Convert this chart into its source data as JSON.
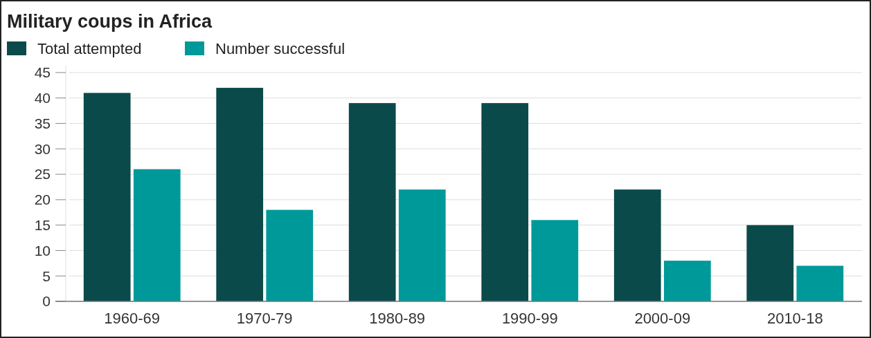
{
  "chart_data": {
    "type": "bar",
    "title": "Military coups in Africa",
    "categories": [
      "1960-69",
      "1970-79",
      "1980-89",
      "1990-99",
      "2000-09",
      "2010-18"
    ],
    "series": [
      {
        "name": "Total attempted",
        "color": "#0b4a4a",
        "values": [
          41,
          42,
          39,
          39,
          22,
          15
        ]
      },
      {
        "name": "Number successful",
        "color": "#00999a",
        "values": [
          26,
          18,
          22,
          16,
          8,
          7
        ]
      }
    ],
    "ylim": [
      0,
      45
    ],
    "yticks": [
      0,
      5,
      10,
      15,
      20,
      25,
      30,
      35,
      40,
      45
    ],
    "grid": "y",
    "legend": "top left"
  }
}
